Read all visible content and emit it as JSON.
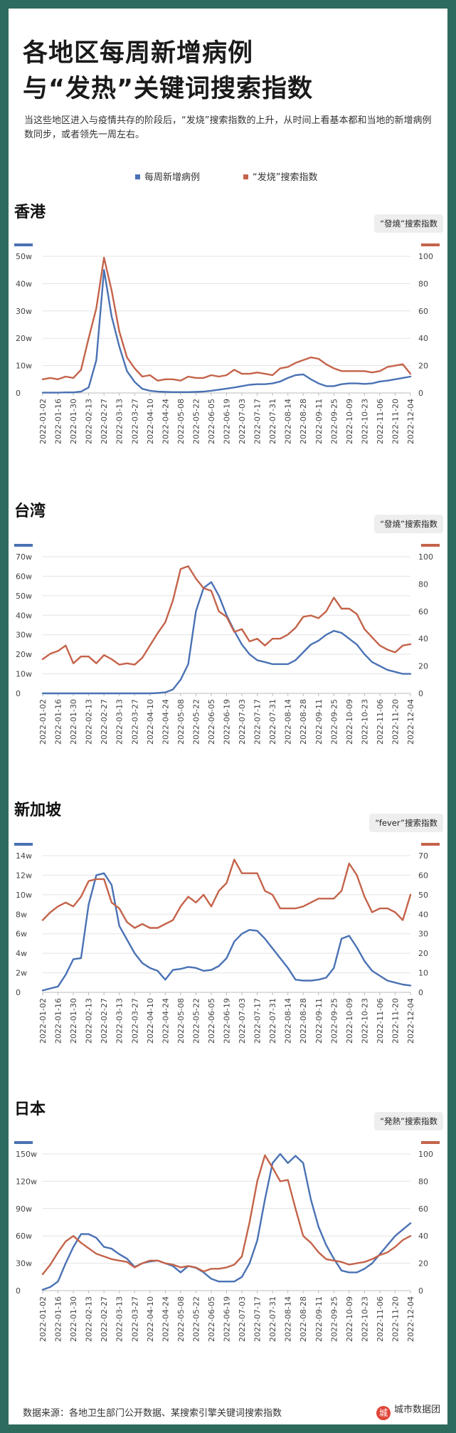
{
  "header": {
    "title_line1": "各地区每周新增病例",
    "title_line2": "与“发热”关键词搜索指数",
    "subtitle": "当这些地区进入与疫情共存的阶段后，“发烧”搜索指数的上升，从时间上看基本都和当地的新增病例数同步，或者领先一周左右。"
  },
  "legend": {
    "cases_label": "每周新增病例",
    "search_label": "“发烧”搜索指数"
  },
  "colors": {
    "cases": "#4a72b4",
    "search": "#c4634a",
    "accent": "#7fb89a",
    "frame": "#2d6b5e"
  },
  "footer": {
    "source": "数据来源：各地卫生部门公开数据、某搜索引擎关键词搜索指数",
    "brand": "城市数据团",
    "brand_icon": "城"
  },
  "chart_data": [
    {
      "type": "line",
      "region": "香港",
      "badge": "“發燒”搜索指数",
      "x": [
        "2022-01-02",
        "2022-01-09",
        "2022-01-16",
        "2022-01-23",
        "2022-01-30",
        "2022-02-06",
        "2022-02-13",
        "2022-02-20",
        "2022-02-27",
        "2022-03-06",
        "2022-03-13",
        "2022-03-20",
        "2022-03-27",
        "2022-04-03",
        "2022-04-10",
        "2022-04-17",
        "2022-04-24",
        "2022-05-01",
        "2022-05-08",
        "2022-05-15",
        "2022-05-22",
        "2022-05-29",
        "2022-06-05",
        "2022-06-12",
        "2022-06-19",
        "2022-06-26",
        "2022-07-03",
        "2022-07-10",
        "2022-07-17",
        "2022-07-24",
        "2022-07-31",
        "2022-08-07",
        "2022-08-14",
        "2022-08-21",
        "2022-08-28",
        "2022-09-04",
        "2022-09-11",
        "2022-09-18",
        "2022-09-25",
        "2022-10-02",
        "2022-10-09",
        "2022-10-16",
        "2022-10-23",
        "2022-10-30",
        "2022-11-06",
        "2022-11-13",
        "2022-11-20",
        "2022-11-27",
        "2022-12-04"
      ],
      "tick_labels": [
        "2022-01-02",
        "2022-01-16",
        "2022-01-30",
        "2022-02-13",
        "2022-02-27",
        "2022-03-13",
        "2022-03-27",
        "2022-04-10",
        "2022-04-24",
        "2022-05-08",
        "2022-05-22",
        "2022-06-05",
        "2022-06-19",
        "2022-07-03",
        "2022-07-17",
        "2022-07-31",
        "2022-08-14",
        "2022-08-28",
        "2022-09-11",
        "2022-09-25",
        "2022-10-09",
        "2022-10-23",
        "2022-11-06",
        "2022-11-20",
        "2022-12-04"
      ],
      "y_left_ticks": [
        "0",
        "10w",
        "20w",
        "30w",
        "40w",
        "50w"
      ],
      "y_right_ticks": [
        "0",
        "20",
        "40",
        "60",
        "80",
        "100"
      ],
      "ylim_left": [
        0,
        50
      ],
      "ylim_right": [
        0,
        100
      ],
      "series": [
        {
          "name": "每周新增病例",
          "axis": "left",
          "values": [
            0.1,
            0.1,
            0.1,
            0.2,
            0.2,
            0.5,
            2,
            12,
            45,
            28,
            17,
            8,
            4,
            1.5,
            0.8,
            0.5,
            0.4,
            0.3,
            0.3,
            0.3,
            0.4,
            0.5,
            0.8,
            1.2,
            1.6,
            2.0,
            2.5,
            3.0,
            3.2,
            3.2,
            3.5,
            4.2,
            5.5,
            6.5,
            6.8,
            5.0,
            3.5,
            2.5,
            2.5,
            3.2,
            3.5,
            3.5,
            3.3,
            3.5,
            4.2,
            4.5,
            5.0,
            5.5,
            6.0
          ]
        },
        {
          "name": "“發燒”搜索指数",
          "axis": "right",
          "values": [
            10,
            11,
            10,
            12,
            11,
            17,
            40,
            62,
            99,
            75,
            45,
            26,
            18,
            12,
            13,
            9,
            10,
            10,
            9,
            12,
            11,
            11,
            13,
            12,
            13,
            17,
            14,
            14,
            15,
            14,
            13,
            18,
            19,
            22,
            24,
            26,
            25,
            21,
            18,
            16,
            16,
            16,
            16,
            15,
            16,
            19,
            20,
            21,
            14
          ]
        }
      ]
    },
    {
      "type": "line",
      "region": "台湾",
      "badge": "“發燒”搜索指数",
      "x": [
        "2022-01-02",
        "2022-01-09",
        "2022-01-16",
        "2022-01-23",
        "2022-01-30",
        "2022-02-06",
        "2022-02-13",
        "2022-02-20",
        "2022-02-27",
        "2022-03-06",
        "2022-03-13",
        "2022-03-20",
        "2022-03-27",
        "2022-04-03",
        "2022-04-10",
        "2022-04-17",
        "2022-04-24",
        "2022-05-01",
        "2022-05-08",
        "2022-05-15",
        "2022-05-22",
        "2022-05-29",
        "2022-06-05",
        "2022-06-12",
        "2022-06-19",
        "2022-06-26",
        "2022-07-03",
        "2022-07-10",
        "2022-07-17",
        "2022-07-24",
        "2022-07-31",
        "2022-08-07",
        "2022-08-14",
        "2022-08-21",
        "2022-08-28",
        "2022-09-04",
        "2022-09-11",
        "2022-09-18",
        "2022-09-25",
        "2022-10-02",
        "2022-10-09",
        "2022-10-16",
        "2022-10-23",
        "2022-10-30",
        "2022-11-06",
        "2022-11-13",
        "2022-11-20",
        "2022-11-27",
        "2022-12-04"
      ],
      "tick_labels": [
        "2022-01-02",
        "2022-01-16",
        "2022-01-30",
        "2022-02-13",
        "2022-02-27",
        "2022-03-13",
        "2022-03-27",
        "2022-04-10",
        "2022-04-24",
        "2022-05-08",
        "2022-05-22",
        "2022-06-05",
        "2022-06-19",
        "2022-07-03",
        "2022-07-17",
        "2022-07-31",
        "2022-08-14",
        "2022-08-28",
        "2022-09-11",
        "2022-09-25",
        "2022-10-09",
        "2022-10-23",
        "2022-11-06",
        "2022-11-20",
        "2022-12-04"
      ],
      "y_left_ticks": [
        "0",
        "10w",
        "20w",
        "30w",
        "40w",
        "50w",
        "60w",
        "70w"
      ],
      "y_right_ticks": [
        "0",
        "20",
        "40",
        "60",
        "80",
        "100"
      ],
      "ylim_left": [
        0,
        70
      ],
      "ylim_right": [
        0,
        100
      ],
      "series": [
        {
          "name": "每周新增病例",
          "axis": "left",
          "values": [
            0,
            0,
            0,
            0,
            0,
            0,
            0,
            0,
            0,
            0,
            0,
            0,
            0,
            0,
            0,
            0.2,
            0.5,
            2,
            7,
            15,
            42,
            54,
            57,
            50,
            40,
            32,
            25,
            20,
            17,
            16,
            15,
            15,
            15,
            17,
            21,
            25,
            27,
            30,
            32,
            31,
            28,
            25,
            20,
            16,
            14,
            12,
            11,
            10,
            10
          ]
        },
        {
          "name": "“發燒”搜索指数",
          "axis": "right",
          "values": [
            25,
            29,
            31,
            35,
            22,
            27,
            27,
            22,
            28,
            25,
            21,
            22,
            21,
            26,
            35,
            44,
            52,
            68,
            91,
            93,
            84,
            77,
            75,
            60,
            56,
            45,
            47,
            38,
            40,
            35,
            40,
            40,
            43,
            48,
            56,
            57,
            55,
            60,
            70,
            62,
            62,
            58,
            47,
            41,
            35,
            32,
            30,
            35,
            36
          ]
        }
      ]
    },
    {
      "type": "line",
      "region": "新加坡",
      "badge": "“fever”搜索指数",
      "x": [
        "2022-01-02",
        "2022-01-09",
        "2022-01-16",
        "2022-01-23",
        "2022-01-30",
        "2022-02-06",
        "2022-02-13",
        "2022-02-20",
        "2022-02-27",
        "2022-03-06",
        "2022-03-13",
        "2022-03-20",
        "2022-03-27",
        "2022-04-03",
        "2022-04-10",
        "2022-04-17",
        "2022-04-24",
        "2022-05-01",
        "2022-05-08",
        "2022-05-15",
        "2022-05-22",
        "2022-05-29",
        "2022-06-05",
        "2022-06-12",
        "2022-06-19",
        "2022-06-26",
        "2022-07-03",
        "2022-07-10",
        "2022-07-17",
        "2022-07-24",
        "2022-07-31",
        "2022-08-07",
        "2022-08-14",
        "2022-08-21",
        "2022-08-28",
        "2022-09-04",
        "2022-09-11",
        "2022-09-18",
        "2022-09-25",
        "2022-10-02",
        "2022-10-09",
        "2022-10-16",
        "2022-10-23",
        "2022-10-30",
        "2022-11-06",
        "2022-11-13",
        "2022-11-20",
        "2022-11-27",
        "2022-12-04"
      ],
      "tick_labels": [
        "2022-01-02",
        "2022-01-16",
        "2022-01-30",
        "2022-02-13",
        "2022-02-27",
        "2022-03-13",
        "2022-03-27",
        "2022-04-10",
        "2022-04-24",
        "2022-05-08",
        "2022-05-22",
        "2022-06-05",
        "2022-06-19",
        "2022-07-03",
        "2022-07-17",
        "2022-07-31",
        "2022-08-14",
        "2022-08-28",
        "2022-09-11",
        "2022-09-25",
        "2022-10-09",
        "2022-10-23",
        "2022-11-06",
        "2022-11-20",
        "2022-12-04"
      ],
      "y_left_ticks": [
        "0",
        "2w",
        "4w",
        "6w",
        "8w",
        "10w",
        "12w",
        "14w"
      ],
      "y_right_ticks": [
        "0",
        "10",
        "20",
        "30",
        "40",
        "50",
        "60",
        "70"
      ],
      "ylim_left": [
        0,
        14
      ],
      "ylim_right": [
        0,
        70
      ],
      "series": [
        {
          "name": "每周新增病例",
          "axis": "left",
          "values": [
            0.2,
            0.4,
            0.6,
            1.8,
            3.4,
            3.5,
            9,
            12,
            12.2,
            11,
            6.8,
            5.4,
            4,
            3,
            2.5,
            2.2,
            1.3,
            2.3,
            2.4,
            2.6,
            2.5,
            2.2,
            2.3,
            2.7,
            3.5,
            5.2,
            6,
            6.4,
            6.3,
            5.5,
            4.5,
            3.5,
            2.5,
            1.3,
            1.2,
            1.2,
            1.3,
            1.5,
            2.5,
            5.5,
            5.8,
            4.6,
            3.2,
            2.2,
            1.7,
            1.2,
            1,
            0.8,
            0.7
          ]
        },
        {
          "name": "“fever”搜索指数",
          "axis": "right",
          "values": [
            37,
            41,
            44,
            46,
            44,
            49,
            57,
            58,
            58,
            46,
            43,
            36,
            33,
            35,
            33,
            33,
            35,
            37,
            44,
            49,
            46,
            50,
            44,
            52,
            56,
            68,
            61,
            61,
            61,
            52,
            50,
            43,
            43,
            43,
            44,
            46,
            48,
            48,
            48,
            52,
            66,
            60,
            49,
            41,
            43,
            43,
            41,
            37,
            50
          ]
        }
      ]
    },
    {
      "type": "line",
      "region": "日本",
      "badge": "“発熱”搜索指数",
      "x": [
        "2022-01-02",
        "2022-01-09",
        "2022-01-16",
        "2022-01-23",
        "2022-01-30",
        "2022-02-06",
        "2022-02-13",
        "2022-02-20",
        "2022-02-27",
        "2022-03-06",
        "2022-03-13",
        "2022-03-20",
        "2022-03-27",
        "2022-04-03",
        "2022-04-10",
        "2022-04-17",
        "2022-04-24",
        "2022-05-01",
        "2022-05-08",
        "2022-05-15",
        "2022-05-22",
        "2022-05-29",
        "2022-06-05",
        "2022-06-12",
        "2022-06-19",
        "2022-06-26",
        "2022-07-03",
        "2022-07-10",
        "2022-07-17",
        "2022-07-24",
        "2022-07-31",
        "2022-08-07",
        "2022-08-14",
        "2022-08-21",
        "2022-08-28",
        "2022-09-04",
        "2022-09-11",
        "2022-09-18",
        "2022-09-25",
        "2022-10-02",
        "2022-10-09",
        "2022-10-16",
        "2022-10-23",
        "2022-10-30",
        "2022-11-06",
        "2022-11-13",
        "2022-11-20",
        "2022-11-27",
        "2022-12-04"
      ],
      "tick_labels": [
        "2022-01-02",
        "2022-01-16",
        "2022-01-30",
        "2022-02-13",
        "2022-02-27",
        "2022-03-13",
        "2022-03-27",
        "2022-04-10",
        "2022-04-24",
        "2022-05-08",
        "2022-05-22",
        "2022-06-05",
        "2022-06-19",
        "2022-07-03",
        "2022-07-17",
        "2022-07-31",
        "2022-08-14",
        "2022-08-28",
        "2022-09-11",
        "2022-09-25",
        "2022-10-09",
        "2022-10-23",
        "2022-11-06",
        "2022-11-20",
        "2022-12-04"
      ],
      "y_left_ticks": [
        "0",
        "30w",
        "60w",
        "90w",
        "120w",
        "150w"
      ],
      "y_right_ticks": [
        "0",
        "20",
        "40",
        "60",
        "80",
        "100"
      ],
      "ylim_left": [
        0,
        150
      ],
      "ylim_right": [
        0,
        100
      ],
      "series": [
        {
          "name": "每周新增病例",
          "axis": "left",
          "values": [
            1,
            4,
            10,
            30,
            48,
            62,
            62,
            58,
            48,
            46,
            40,
            35,
            26,
            30,
            32,
            33,
            30,
            27,
            20,
            27,
            25,
            20,
            13,
            10,
            10,
            10,
            15,
            30,
            55,
            100,
            140,
            150,
            140,
            148,
            140,
            100,
            70,
            50,
            35,
            22,
            20,
            20,
            24,
            30,
            40,
            50,
            60,
            67,
            74
          ]
        },
        {
          "name": "“発熱”搜索指数",
          "axis": "right",
          "values": [
            12,
            19,
            28,
            36,
            40,
            35,
            31,
            27,
            25,
            23,
            22,
            21,
            17,
            20,
            22,
            22,
            20,
            19,
            17,
            18,
            17,
            14,
            16,
            16,
            17,
            19,
            25,
            50,
            80,
            99,
            90,
            80,
            81,
            60,
            40,
            35,
            28,
            23,
            22,
            21,
            19,
            20,
            21,
            23,
            26,
            28,
            32,
            37,
            40
          ]
        }
      ]
    }
  ]
}
